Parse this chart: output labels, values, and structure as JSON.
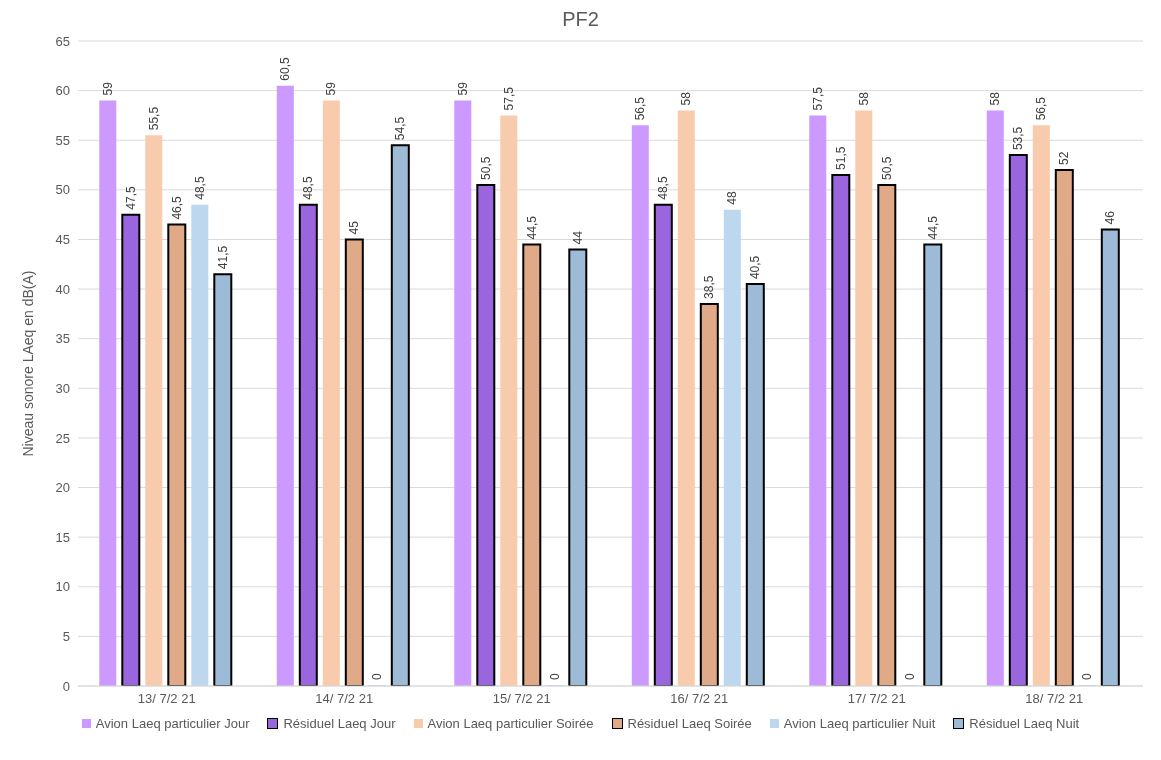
{
  "chart_data": {
    "type": "bar",
    "title": "PF2",
    "ylabel": "Niveau sonore LAeq en dB(A)",
    "categories": [
      "13/ 7/2 21",
      "14/ 7/2 21",
      "15/ 7/2 21",
      "16/ 7/2 21",
      "17/ 7/2 21",
      "18/ 7/2 21"
    ],
    "series": [
      {
        "name": "Avion Laeq particulier Jour",
        "color": "#cc99ff",
        "values": [
          59,
          60.5,
          59,
          56.5,
          57.5,
          58
        ],
        "value_labels": [
          "59",
          "60,5",
          "59",
          "56,5",
          "57,5",
          "58"
        ]
      },
      {
        "name": "Résiduel Laeq Jour",
        "color": "#9966dd",
        "values": [
          47.5,
          48.5,
          50.5,
          48.5,
          51.5,
          53.5
        ],
        "value_labels": [
          "47,5",
          "48,5",
          "50,5",
          "48,5",
          "51,5",
          "53,5"
        ]
      },
      {
        "name": "Avion Laeq particulier Soirée",
        "color": "#f8cbad",
        "values": [
          55.5,
          59,
          57.5,
          58,
          58,
          56.5
        ],
        "value_labels": [
          "55,5",
          "59",
          "57,5",
          "58",
          "58",
          "56,5"
        ]
      },
      {
        "name": "Résiduel Laeq Soirée",
        "color": "#e0aa88",
        "values": [
          46.5,
          45,
          44.5,
          38.5,
          50.5,
          52
        ],
        "value_labels": [
          "46,5",
          "45",
          "44,5",
          "38,5",
          "50,5",
          "52"
        ]
      },
      {
        "name": "Avion Laeq particulier Nuit",
        "color": "#bdd7ee",
        "values": [
          48.5,
          0,
          0,
          48,
          0,
          0
        ],
        "value_labels": [
          "48,5",
          "0",
          "0",
          "48",
          "0",
          "0"
        ]
      },
      {
        "name": "Résiduel Laeq Nuit",
        "color": "#9dbbd6",
        "values": [
          41.5,
          54.5,
          44,
          40.5,
          44.5,
          46
        ],
        "value_labels": [
          "41,5",
          "54,5",
          "44",
          "40,5",
          "44,5",
          "46"
        ]
      }
    ],
    "ylim": [
      0,
      65
    ],
    "yticks": [
      0,
      5,
      10,
      15,
      20,
      25,
      30,
      35,
      40,
      45,
      50,
      55,
      60,
      65
    ],
    "grid": "y",
    "legend": "bottom"
  }
}
